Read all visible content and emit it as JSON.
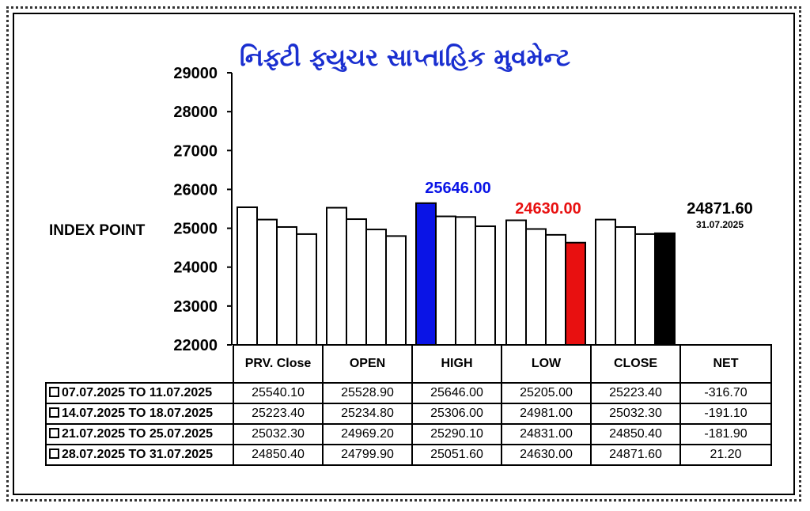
{
  "title": "નિફ્ટી ફ્યુચર સાપ્તાહિક મુવમેન્ટ",
  "y_axis_label": "INDEX POINT",
  "chart_data": {
    "type": "bar",
    "title": "નિફ્ટી ફ્યુચર સાપ્તાહિક મુવમેન્ટ",
    "ylabel": "INDEX POINT",
    "ylim": [
      22000,
      29000
    ],
    "yticks": [
      "29000",
      "28000",
      "27000",
      "26000",
      "25000",
      "24000",
      "23000",
      "22000"
    ],
    "categories": [
      "PRV. Close",
      "OPEN",
      "HIGH",
      "LOW",
      "CLOSE"
    ],
    "series": [
      {
        "name": "07.07.2025 TO 11.07.2025",
        "values": [
          25540.1,
          25528.9,
          25646.0,
          25205.0,
          25223.4
        ]
      },
      {
        "name": "14.07.2025 TO 18.07.2025",
        "values": [
          25223.4,
          25234.8,
          25306.0,
          24981.0,
          25032.3
        ]
      },
      {
        "name": "21.07.2025 TO 25.07.2025",
        "values": [
          25032.3,
          24969.2,
          25290.1,
          24831.0,
          24850.4
        ]
      },
      {
        "name": "28.07.2025 TO 31.07.2025",
        "values": [
          24850.4,
          24799.9,
          25051.6,
          24630.0,
          24871.6
        ]
      }
    ],
    "highlights": {
      "high": {
        "label": "25646.00",
        "color": "#0a14e6",
        "category_index": 2,
        "series_index": 0
      },
      "low": {
        "label": "24630.00",
        "color": "#e81010",
        "category_index": 3,
        "series_index": 3
      },
      "close": {
        "label": "24871.60",
        "date": "31.07.2025",
        "color": "#000000",
        "category_index": 4,
        "series_index": 3
      }
    },
    "grid": false,
    "legend": "table-below"
  },
  "table": {
    "headers": [
      "PRV. Close",
      "OPEN",
      "HIGH",
      "LOW",
      "CLOSE",
      "NET"
    ],
    "rows": [
      {
        "period": "07.07.2025 TO 11.07.2025",
        "cells": [
          "25540.10",
          "25528.90",
          "25646.00",
          "25205.00",
          "25223.40",
          "-316.70"
        ]
      },
      {
        "period": "14.07.2025 TO 18.07.2025",
        "cells": [
          "25223.40",
          "25234.80",
          "25306.00",
          "24981.00",
          "25032.30",
          "-191.10"
        ]
      },
      {
        "period": "21.07.2025 TO 25.07.2025",
        "cells": [
          "25032.30",
          "24969.20",
          "25290.10",
          "24831.00",
          "24850.40",
          "-181.90"
        ]
      },
      {
        "period": "28.07.2025 TO 31.07.2025",
        "cells": [
          "24850.40",
          "24799.90",
          "25051.60",
          "24630.00",
          "24871.60",
          "21.20"
        ]
      }
    ]
  }
}
